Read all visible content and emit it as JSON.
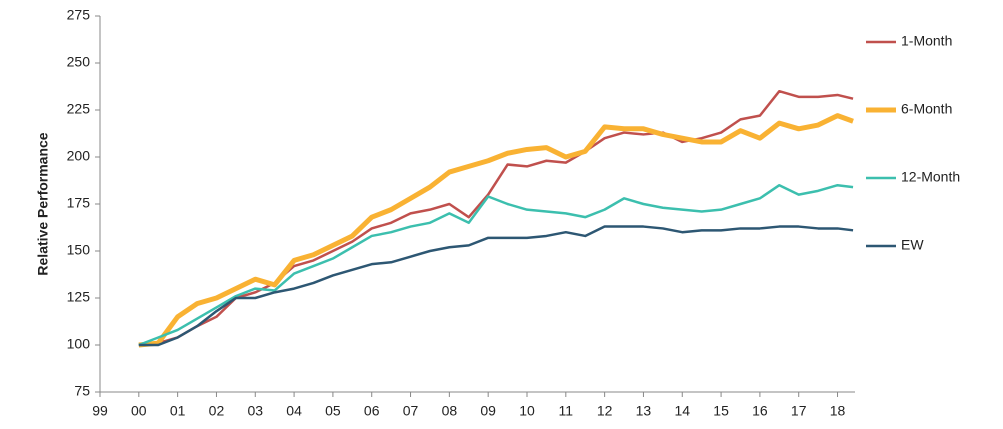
{
  "chart_data": {
    "type": "line",
    "y_label": "Relative Performance",
    "x": [
      2000.0,
      2000.5,
      2001.0,
      2001.5,
      2002.0,
      2002.5,
      2003.0,
      2003.5,
      2004.0,
      2004.5,
      2005.0,
      2005.5,
      2006.0,
      2006.5,
      2007.0,
      2007.5,
      2008.0,
      2008.5,
      2009.0,
      2009.5,
      2010.0,
      2010.5,
      2011.0,
      2011.5,
      2012.0,
      2012.5,
      2013.0,
      2013.5,
      2014.0,
      2014.5,
      2015.0,
      2015.5,
      2016.0,
      2016.5,
      2017.0,
      2017.5,
      2018.0,
      2018.4
    ],
    "series": [
      {
        "name": "1-Month",
        "color": "#c0504d",
        "line_width": 2.5,
        "values": [
          100,
          101,
          104,
          110,
          115,
          125,
          128,
          133,
          142,
          145,
          150,
          155,
          162,
          165,
          170,
          172,
          175,
          168,
          180,
          196,
          195,
          198,
          197,
          203,
          210,
          213,
          212,
          213,
          208,
          210,
          213,
          220,
          222,
          235,
          232,
          232,
          233,
          231
        ]
      },
      {
        "name": "6-Month",
        "color": "#f9b233",
        "line_width": 5,
        "values": [
          100,
          101,
          115,
          122,
          125,
          130,
          135,
          132,
          145,
          148,
          153,
          158,
          168,
          172,
          178,
          184,
          192,
          195,
          198,
          202,
          204,
          205,
          200,
          203,
          216,
          215,
          215,
          212,
          210,
          208,
          208,
          214,
          210,
          218,
          215,
          217,
          222,
          219
        ]
      },
      {
        "name": "12-Month",
        "color": "#3cbfae",
        "line_width": 2.5,
        "values": [
          100,
          104,
          108,
          114,
          120,
          126,
          130,
          129,
          138,
          142,
          146,
          152,
          158,
          160,
          163,
          165,
          170,
          165,
          179,
          175,
          172,
          171,
          170,
          168,
          172,
          178,
          175,
          173,
          172,
          171,
          172,
          175,
          178,
          185,
          180,
          182,
          185,
          184
        ]
      },
      {
        "name": "EW",
        "color": "#2d5773",
        "line_width": 2.5,
        "values": [
          100,
          100,
          104,
          110,
          118,
          125,
          125,
          128,
          130,
          133,
          137,
          140,
          143,
          144,
          147,
          150,
          152,
          153,
          157,
          157,
          157,
          158,
          160,
          158,
          163,
          163,
          163,
          162,
          160,
          161,
          161,
          162,
          162,
          163,
          163,
          162,
          162,
          161
        ]
      }
    ],
    "xlim": [
      1999,
      2018.45
    ],
    "xticks": [
      {
        "value": 1999,
        "label": "99"
      },
      {
        "value": 2000,
        "label": "00"
      },
      {
        "value": 2001,
        "label": "01"
      },
      {
        "value": 2002,
        "label": "02"
      },
      {
        "value": 2003,
        "label": "03"
      },
      {
        "value": 2004,
        "label": "04"
      },
      {
        "value": 2005,
        "label": "05"
      },
      {
        "value": 2006,
        "label": "06"
      },
      {
        "value": 2007,
        "label": "07"
      },
      {
        "value": 2008,
        "label": "08"
      },
      {
        "value": 2009,
        "label": "09"
      },
      {
        "value": 2010,
        "label": "10"
      },
      {
        "value": 2011,
        "label": "11"
      },
      {
        "value": 2012,
        "label": "12"
      },
      {
        "value": 2013,
        "label": "13"
      },
      {
        "value": 2014,
        "label": "14"
      },
      {
        "value": 2015,
        "label": "15"
      },
      {
        "value": 2016,
        "label": "16"
      },
      {
        "value": 2017,
        "label": "17"
      },
      {
        "value": 2018,
        "label": "18"
      }
    ],
    "ylim": [
      75,
      275
    ],
    "yticks": [
      75,
      100,
      125,
      150,
      175,
      200,
      225,
      250,
      275
    ],
    "grid": false,
    "legend": "right"
  }
}
